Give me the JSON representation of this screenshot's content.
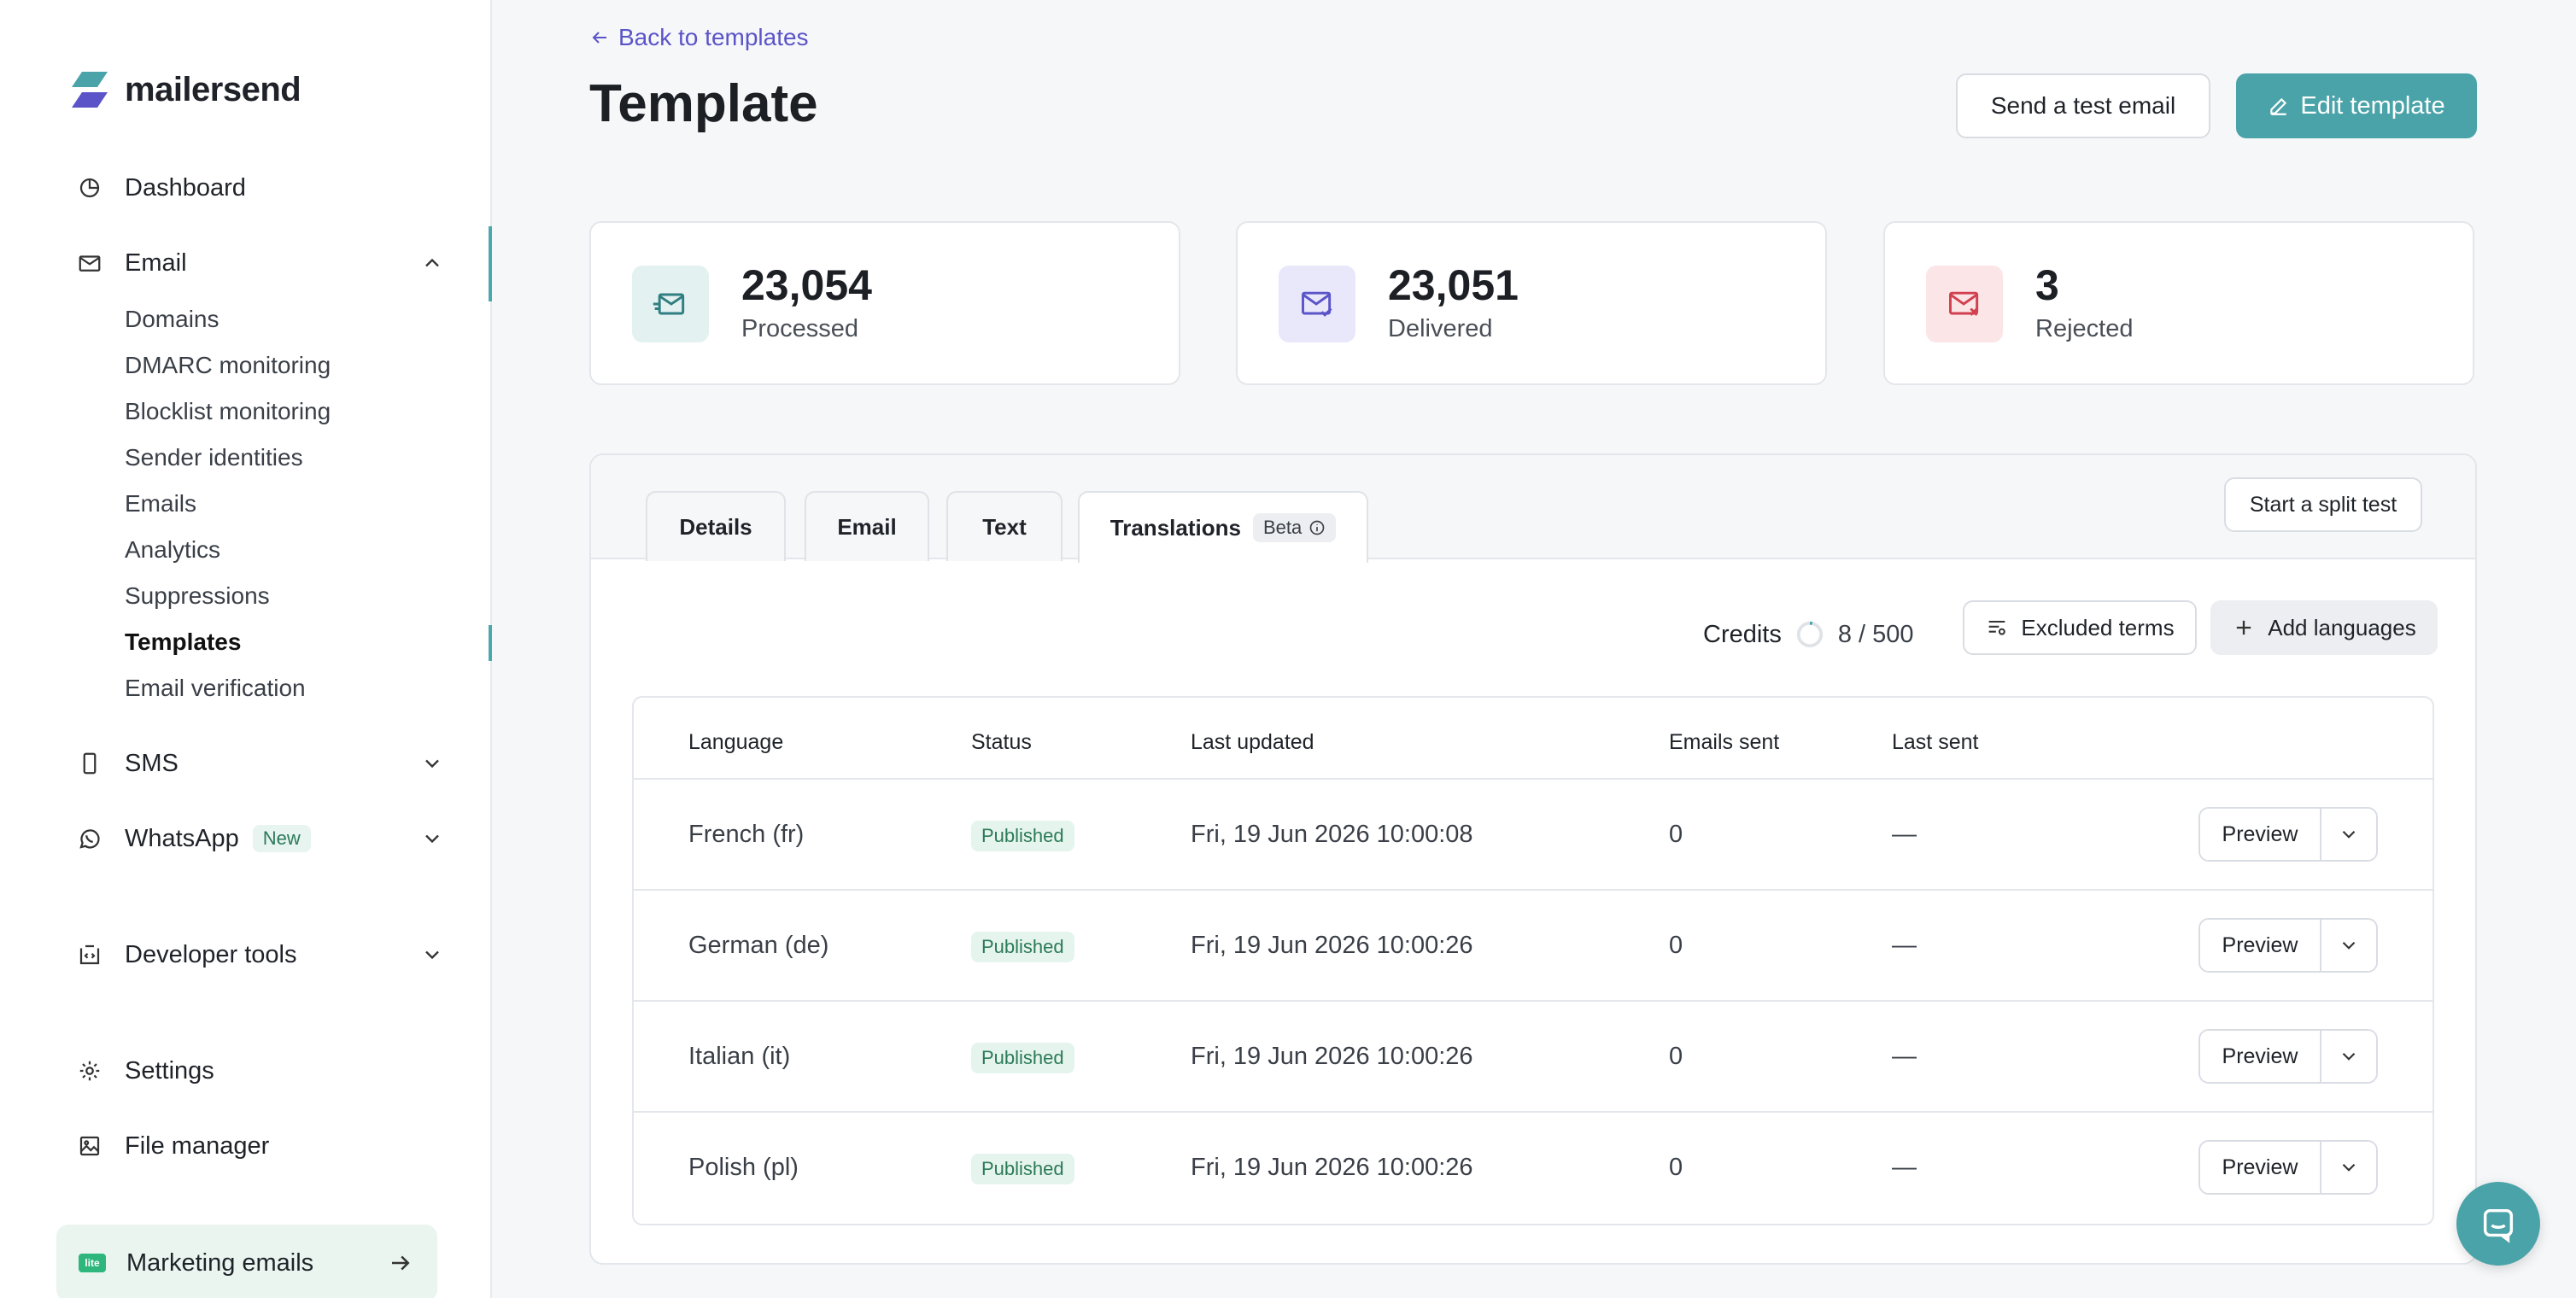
{
  "brand": {
    "name": "mailersend"
  },
  "sidebar": {
    "items": [
      {
        "label": "Dashboard",
        "icon": "dashboard-icon"
      },
      {
        "label": "Email",
        "icon": "email-icon"
      },
      {
        "label": "SMS",
        "icon": "sms-icon"
      },
      {
        "label": "WhatsApp",
        "icon": "whatsapp-icon",
        "badge": "New"
      },
      {
        "label": "Developer tools",
        "icon": "developer-tools-icon"
      },
      {
        "label": "Settings",
        "icon": "gear-icon"
      },
      {
        "label": "File manager",
        "icon": "file-manager-icon"
      }
    ],
    "email_sub_items": [
      "Domains",
      "DMARC monitoring",
      "Blocklist monitoring",
      "Sender identities",
      "Emails",
      "Analytics",
      "Suppressions",
      "Templates",
      "Email verification"
    ],
    "active_sub_item": "Templates",
    "marketing": {
      "label": "Marketing emails",
      "badge": "lite"
    }
  },
  "header": {
    "back_link": "Back to templates",
    "title": "Template",
    "send_test_label": "Send a test email",
    "edit_label": "Edit template"
  },
  "stats": [
    {
      "value": "23,054",
      "label": "Processed",
      "icon": "processed-mail-icon",
      "color": "#e4f1f1"
    },
    {
      "value": "23,051",
      "label": "Delivered",
      "icon": "delivered-mail-icon",
      "color": "#e9e8fb"
    },
    {
      "value": "3",
      "label": "Rejected",
      "icon": "rejected-mail-icon",
      "color": "#fbe5e7"
    }
  ],
  "tabs": [
    {
      "label": "Details"
    },
    {
      "label": "Email"
    },
    {
      "label": "Text"
    },
    {
      "label": "Translations",
      "badge": "Beta",
      "active": true
    }
  ],
  "split_test_label": "Start a split test",
  "credits": {
    "label": "Credits",
    "used": "8 / 500"
  },
  "excluded_terms_label": "Excluded terms",
  "add_languages_label": "Add languages",
  "table": {
    "columns": [
      "Language",
      "Status",
      "Last updated",
      "Emails sent",
      "Last sent"
    ],
    "rows": [
      {
        "language": "French (fr)",
        "status": "Published",
        "updated": "Fri, 19 Jun 2026 10:00:08",
        "sent": "0",
        "last": "—"
      },
      {
        "language": "German (de)",
        "status": "Published",
        "updated": "Fri, 19 Jun 2026 10:00:26",
        "sent": "0",
        "last": "—"
      },
      {
        "language": "Italian (it)",
        "status": "Published",
        "updated": "Fri, 19 Jun 2026 10:00:26",
        "sent": "0",
        "last": "—"
      },
      {
        "language": "Polish (pl)",
        "status": "Published",
        "updated": "Fri, 19 Jun 2026 10:00:26",
        "sent": "0",
        "last": "—"
      }
    ],
    "preview_label": "Preview"
  },
  "colors": {
    "accent": "#4aa3a8",
    "link": "#5b54c8"
  }
}
